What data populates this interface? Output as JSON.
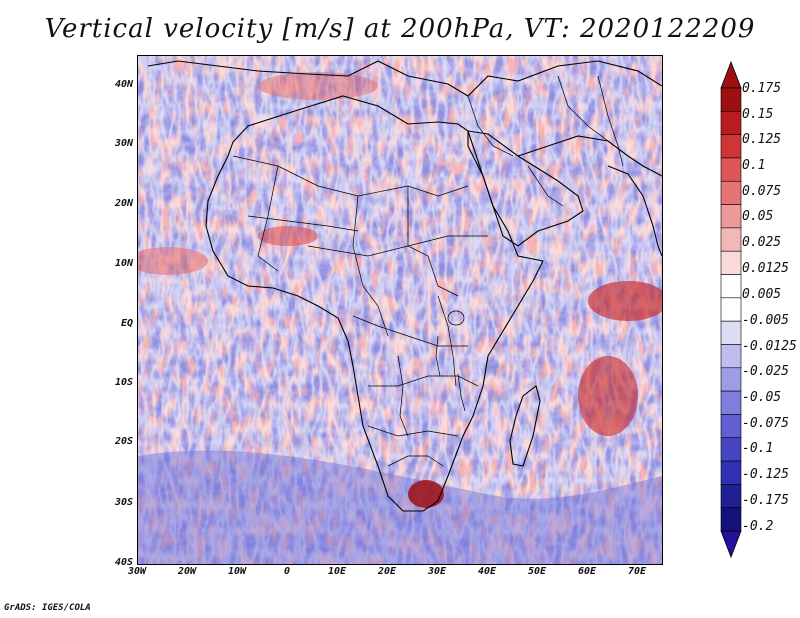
{
  "title": "Vertical velocity [m/s] at 200hPa, VT: 2020122209",
  "credit": "GrADS: IGES/COLA",
  "map": {
    "region": "Africa",
    "lat_labels": [
      "40N",
      "30N",
      "20N",
      "10N",
      "EQ",
      "10S",
      "20S",
      "30S",
      "40S"
    ],
    "lon_labels": [
      "30W",
      "20W",
      "10W",
      "0",
      "10E",
      "20E",
      "30E",
      "40E",
      "50E",
      "60E",
      "70E"
    ],
    "lat_range": [
      -40,
      45
    ],
    "lon_range": [
      -30,
      75
    ]
  },
  "colorbar": {
    "labels": [
      "0.175",
      "0.15",
      "0.125",
      "0.1",
      "0.075",
      "0.05",
      "0.025",
      "0.0125",
      "0.005",
      "-0.005",
      "-0.0125",
      "-0.025",
      "-0.05",
      "-0.075",
      "-0.1",
      "-0.125",
      "-0.175",
      "-0.2"
    ],
    "colors": [
      "#9e0f12",
      "#b91c1f",
      "#cf3535",
      "#dd5555",
      "#e57575",
      "#ec9999",
      "#f2b8b8",
      "#f8dada",
      "#ffffff",
      "#ffffff",
      "#dcdcf4",
      "#bdbdee",
      "#9d9de6",
      "#7e7edc",
      "#6060d0",
      "#4646c2",
      "#3030b0",
      "#1f1f96",
      "#14127a"
    ],
    "triangle_top_color": "#9e0f12",
    "triangle_bottom_color": "#20129a"
  }
}
